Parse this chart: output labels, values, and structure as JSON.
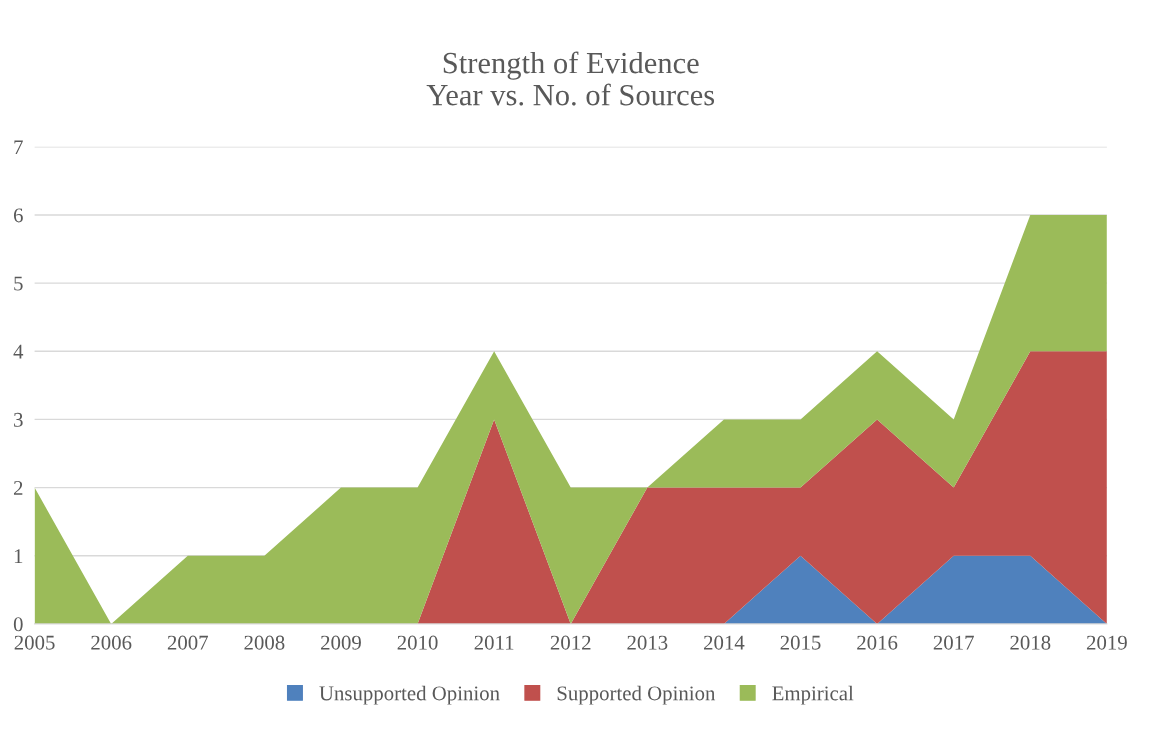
{
  "chart_data": {
    "type": "area",
    "stacked": true,
    "title": "Strength of Evidence\nYear vs. No. of Sources",
    "categories": [
      "2005",
      "2006",
      "2007",
      "2008",
      "2009",
      "2010",
      "2011",
      "2012",
      "2013",
      "2014",
      "2015",
      "2016",
      "2017",
      "2018",
      "2019"
    ],
    "series": [
      {
        "name": "Unsupported Opinion",
        "color": "#4f81bd",
        "values": [
          0,
          0,
          0,
          0,
          0,
          0,
          0,
          0,
          0,
          0,
          1,
          0,
          1,
          1,
          0
        ]
      },
      {
        "name": "Supported Opinion",
        "color": "#c0504d",
        "values": [
          0,
          0,
          0,
          0,
          0,
          0,
          3,
          0,
          2,
          2,
          1,
          3,
          1,
          3,
          4
        ]
      },
      {
        "name": "Empirical",
        "color": "#9bbb59",
        "values": [
          2,
          0,
          1,
          1,
          2,
          2,
          1,
          2,
          0,
          1,
          1,
          1,
          1,
          2,
          2
        ]
      }
    ],
    "ylim": [
      0,
      7
    ],
    "yticks": [
      0,
      1,
      2,
      3,
      4,
      5,
      6,
      7
    ],
    "grid": "y",
    "legend": "bottom"
  }
}
